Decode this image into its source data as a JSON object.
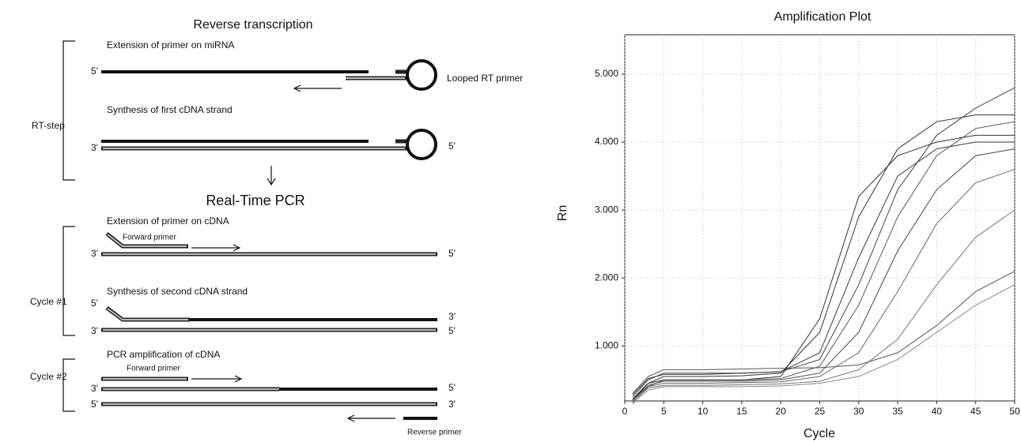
{
  "diagram": {
    "title": "Reverse transcription",
    "pcr_title": "Real-Time PCR",
    "brackets": [
      "RT-step",
      "Cycle #1",
      "Cycle #2"
    ],
    "steps": [
      {
        "caption": "Extension of primer on miRNA",
        "labels": [
          "5'",
          "Looped RT primer"
        ]
      },
      {
        "caption": "Synthesis of first cDNA strand",
        "labels": [
          "3'",
          "5'"
        ]
      },
      {
        "caption": "Extension of primer on cDNA",
        "labels": [
          "Forward primer",
          "3'",
          "5'"
        ]
      },
      {
        "caption": "Synthesis of second cDNA strand",
        "labels": [
          "5'",
          "3'",
          "3'",
          "5'"
        ]
      },
      {
        "caption": "PCR amplification of cDNA",
        "labels": [
          "Forward primer",
          "3'",
          "5'",
          "5'",
          "3'",
          "Reverse primer"
        ]
      }
    ]
  },
  "chart_data": {
    "type": "line",
    "title": "Amplification Plot",
    "x_label": "Cycle",
    "y_label": "Rn",
    "x": [
      1,
      3,
      5,
      10,
      15,
      20,
      25,
      30,
      35,
      40,
      45,
      50
    ],
    "series": [
      {
        "color": "#333333",
        "values": [
          0.2,
          0.45,
          0.55,
          0.55,
          0.56,
          0.6,
          1.2,
          2.9,
          3.9,
          4.3,
          4.4,
          4.4
        ]
      },
      {
        "color": "#555555",
        "values": [
          0.15,
          0.4,
          0.5,
          0.5,
          0.5,
          0.52,
          0.7,
          1.6,
          2.9,
          3.8,
          4.2,
          4.3
        ]
      },
      {
        "color": "#444444",
        "values": [
          0.25,
          0.5,
          0.6,
          0.6,
          0.6,
          0.62,
          0.8,
          1.9,
          3.3,
          4.1,
          4.5,
          4.8
        ]
      },
      {
        "color": "#666666",
        "values": [
          0.2,
          0.4,
          0.45,
          0.45,
          0.46,
          0.47,
          0.55,
          0.9,
          1.8,
          2.8,
          3.4,
          3.6
        ]
      },
      {
        "color": "#777777",
        "values": [
          0.18,
          0.38,
          0.42,
          0.42,
          0.43,
          0.44,
          0.48,
          0.65,
          1.1,
          1.9,
          2.6,
          3.0
        ]
      },
      {
        "color": "#555555",
        "values": [
          0.3,
          0.55,
          0.65,
          0.65,
          0.66,
          0.67,
          0.68,
          0.72,
          0.9,
          1.3,
          1.8,
          2.1
        ]
      },
      {
        "color": "#333333",
        "values": [
          0.22,
          0.45,
          0.5,
          0.5,
          0.5,
          0.55,
          1.4,
          3.2,
          3.8,
          4.0,
          4.1,
          4.1
        ]
      },
      {
        "color": "#444444",
        "values": [
          0.2,
          0.42,
          0.48,
          0.48,
          0.48,
          0.5,
          0.6,
          1.2,
          2.4,
          3.3,
          3.8,
          3.9
        ]
      },
      {
        "color": "#888888",
        "values": [
          0.17,
          0.35,
          0.4,
          0.4,
          0.4,
          0.41,
          0.45,
          0.55,
          0.8,
          1.2,
          1.6,
          1.9
        ]
      },
      {
        "color": "#3a3a3a",
        "values": [
          0.28,
          0.52,
          0.58,
          0.58,
          0.6,
          0.62,
          0.9,
          2.3,
          3.5,
          3.9,
          4.0,
          4.0
        ]
      }
    ],
    "xlim": [
      0,
      50
    ],
    "xticks": [
      0,
      5,
      10,
      15,
      20,
      25,
      30,
      35,
      40,
      45,
      50
    ],
    "ylim": [
      0.19,
      5.58
    ],
    "yticks": [
      {
        "value": 1,
        "label": "1.000"
      },
      {
        "value": 2,
        "label": "2.000"
      },
      {
        "value": 3,
        "label": "3.000"
      },
      {
        "value": 4,
        "label": "4.000"
      },
      {
        "value": 5,
        "label": "5.000"
      }
    ],
    "grid": true
  }
}
